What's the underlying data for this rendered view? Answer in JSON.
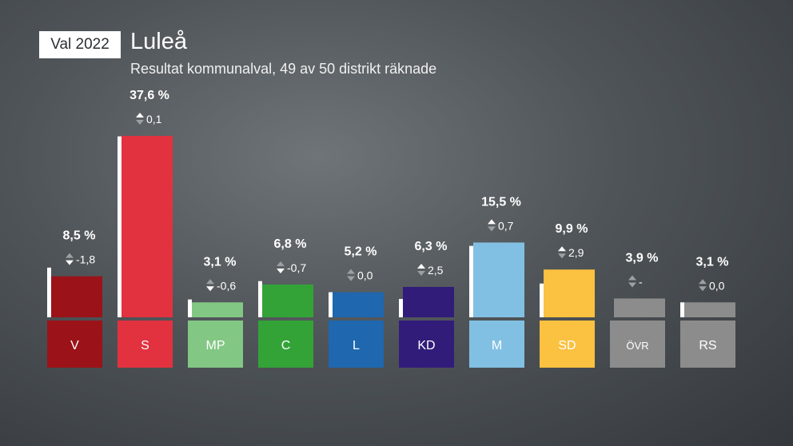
{
  "header": {
    "badge": "Val 2022",
    "title": "Luleå",
    "subtitle": "Resultat kommunalval, 49 av 50 distrikt räknade"
  },
  "chart_data": {
    "type": "bar",
    "categories": [
      "V",
      "S",
      "MP",
      "C",
      "L",
      "KD",
      "M",
      "SD",
      "ÖVR",
      "RS"
    ],
    "values": [
      8.5,
      37.6,
      3.1,
      6.8,
      5.2,
      6.3,
      15.5,
      9.9,
      3.9,
      3.1
    ],
    "value_labels": [
      "8,5 %",
      "37,6 %",
      "3,1 %",
      "6,8 %",
      "5,2 %",
      "6,3 %",
      "15,5 %",
      "9,9 %",
      "3,9 %",
      "3,1 %"
    ],
    "previous_values": [
      10.3,
      37.5,
      3.7,
      7.5,
      5.2,
      3.8,
      14.8,
      7.0,
      null,
      3.1
    ],
    "changes": [
      "-1,8",
      "0,1",
      "-0,6",
      "-0,7",
      "0,0",
      "2,5",
      "0,7",
      "2,9",
      "-",
      "0,0"
    ],
    "change_direction": [
      "down",
      "up",
      "down",
      "down",
      "none",
      "up",
      "up",
      "up",
      "none",
      "none"
    ],
    "colors": [
      "#9b1318",
      "#e23240",
      "#83c784",
      "#33a338",
      "#1f67ae",
      "#321c7a",
      "#82c0e3",
      "#fbc140",
      "#8c8c8c",
      "#8c8c8c"
    ],
    "ylim": [
      0,
      37.6
    ]
  }
}
